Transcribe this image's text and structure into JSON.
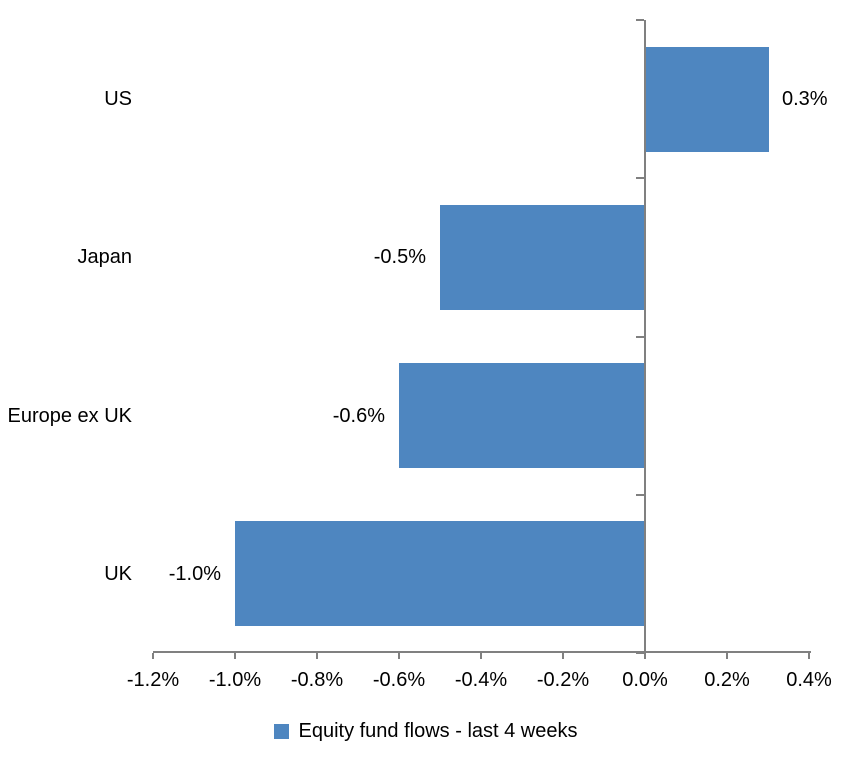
{
  "chart_data": {
    "type": "bar",
    "orientation": "horizontal",
    "title": "",
    "categories": [
      "US",
      "Japan",
      "Europe ex UK",
      "UK"
    ],
    "series": [
      {
        "name": "Equity fund flows - last 4 weeks",
        "values": [
          0.3,
          -0.5,
          -0.6,
          -1.0
        ],
        "value_labels": [
          "0.3%",
          "-0.5%",
          "-0.6%",
          "-1.0%"
        ]
      }
    ],
    "x_ticks": [
      {
        "label": "-1.2%",
        "value": -1.2
      },
      {
        "label": "-1.0%",
        "value": -1.0
      },
      {
        "label": "-0.8%",
        "value": -0.8
      },
      {
        "label": "-0.6%",
        "value": -0.6
      },
      {
        "label": "-0.4%",
        "value": -0.4
      },
      {
        "label": "-0.2%",
        "value": -0.2
      },
      {
        "label": "0.0%",
        "value": 0.0
      },
      {
        "label": "0.2%",
        "value": 0.2
      },
      {
        "label": "0.4%",
        "value": 0.4
      }
    ],
    "xlim": [
      -1.2,
      0.4
    ],
    "grid": false,
    "legend_position": "bottom",
    "legend": "Equity fund flows - last 4 weeks",
    "colors": {
      "bar": "#4E86C0",
      "axis": "#808080",
      "text": "#000000",
      "background": "#FFFFFF"
    }
  }
}
